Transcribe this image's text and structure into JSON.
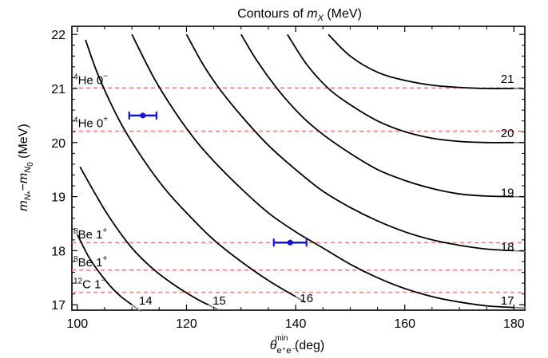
{
  "chart_data": {
    "type": "line",
    "title_prefix": "Contours of ",
    "title_var": "m",
    "title_var_sub": "X",
    "title_suffix": " (MeV)",
    "xlabel_theta": "θ",
    "xlabel_sup": "min",
    "xlabel_sub": "e⁺e⁻",
    "xlabel_unit": " (deg)",
    "ylabel_m1": "m",
    "ylabel_m1_sub": "N",
    "ylabel_m1_subsub": "*",
    "ylabel_minus": "−",
    "ylabel_m2": "m",
    "ylabel_m2_sub": "N",
    "ylabel_m2_subsub": "0",
    "ylabel_unit": " (MeV)",
    "xlim": [
      99,
      182
    ],
    "ylim": [
      16.9,
      22.15
    ],
    "x_ticks": [
      100,
      120,
      140,
      160,
      180
    ],
    "x_tick_labels": [
      "100",
      "120",
      "140",
      "160",
      "180"
    ],
    "y_ticks": [
      17,
      18,
      19,
      20,
      21,
      22
    ],
    "y_tick_labels": [
      "17",
      "18",
      "19",
      "20",
      "21",
      "22"
    ],
    "contours": [
      {
        "label": "14",
        "label_pos": [
          112.5,
          17.0
        ],
        "x": [
          100.0,
          102.0,
          104.0,
          106.0,
          108.0,
          110.0
        ],
        "y": [
          18.3,
          17.9,
          17.6,
          17.35,
          17.15,
          17.0
        ]
      },
      {
        "label": "15",
        "label_pos": [
          126.0,
          17.0
        ],
        "x": [
          100.5,
          103,
          106,
          110,
          114,
          118,
          122,
          124.0
        ],
        "y": [
          19.55,
          19.1,
          18.6,
          18.05,
          17.65,
          17.35,
          17.1,
          17.0
        ]
      },
      {
        "label": "16",
        "label_pos": [
          142.0,
          17.05
        ],
        "x": [
          101.5,
          104,
          108,
          112,
          116,
          120,
          125,
          130,
          135,
          140.0
        ],
        "y": [
          21.9,
          21.2,
          20.35,
          19.7,
          19.15,
          18.7,
          18.2,
          17.8,
          17.45,
          17.15
        ]
      },
      {
        "label": "17",
        "label_pos": [
          178.8,
          17.0
        ],
        "x": [
          110.0,
          114,
          118,
          122,
          126,
          130,
          135,
          140,
          145,
          150,
          155,
          160,
          165,
          170,
          175,
          180.0
        ],
        "y": [
          22.0,
          21.2,
          20.55,
          20.0,
          19.55,
          19.15,
          18.7,
          18.35,
          18.05,
          17.75,
          17.5,
          17.3,
          17.15,
          17.05,
          16.98,
          16.95
        ]
      },
      {
        "label": "18",
        "label_pos": [
          178.8,
          18.0
        ],
        "x": [
          120.0,
          123,
          126,
          130,
          135,
          140,
          145,
          150,
          155,
          160,
          165,
          170,
          175,
          180.0
        ],
        "y": [
          22.0,
          21.45,
          21.0,
          20.5,
          19.95,
          19.5,
          19.1,
          18.8,
          18.55,
          18.35,
          18.2,
          18.1,
          18.03,
          18.0
        ]
      },
      {
        "label": "19",
        "label_pos": [
          178.8,
          19.0
        ],
        "x": [
          130.0,
          133,
          137,
          141,
          145,
          150,
          155,
          160,
          165,
          170,
          175,
          180.0
        ],
        "y": [
          22.0,
          21.5,
          20.95,
          20.5,
          20.15,
          19.8,
          19.5,
          19.3,
          19.15,
          19.05,
          19.01,
          19.0
        ]
      },
      {
        "label": "20",
        "label_pos": [
          178.8,
          20.1
        ],
        "x": [
          138.5,
          142,
          146,
          150,
          155,
          160,
          165,
          170,
          175,
          180.0
        ],
        "y": [
          22.0,
          21.45,
          21.0,
          20.7,
          20.4,
          20.2,
          20.08,
          20.02,
          20.0,
          20.0
        ]
      },
      {
        "label": "21",
        "label_pos": [
          178.8,
          21.1
        ],
        "x": [
          146.0,
          150,
          155,
          160,
          165,
          170,
          175,
          180.0
        ],
        "y": [
          22.0,
          21.6,
          21.3,
          21.15,
          21.06,
          21.02,
          21.0,
          21.0
        ]
      }
    ],
    "contour_color": "#000000",
    "contour_tail_color": "#808080",
    "levels": [
      {
        "label_base": "He 0",
        "label_pre": "4",
        "label_sup": "−",
        "value": 21.01
      },
      {
        "label_base": "He 0",
        "label_pre": "4",
        "label_sup": "+",
        "value": 20.21
      },
      {
        "label_base": "Be 1",
        "label_pre": "8",
        "label_sup": "+",
        "value": 18.15
      },
      {
        "label_base": "Be 1",
        "label_pre": "8",
        "label_sup": "+",
        "value": 17.64
      },
      {
        "label_base": "C 1",
        "label_pre": "12",
        "label_sup": "−",
        "value": 17.23
      }
    ],
    "level_color": "#f08080",
    "points": [
      {
        "x": 112.0,
        "y": 20.5,
        "xerr": 2.5
      },
      {
        "x": 139.0,
        "y": 18.15,
        "xerr": 3.0
      }
    ],
    "point_color": "#1515d6",
    "grid": false
  }
}
